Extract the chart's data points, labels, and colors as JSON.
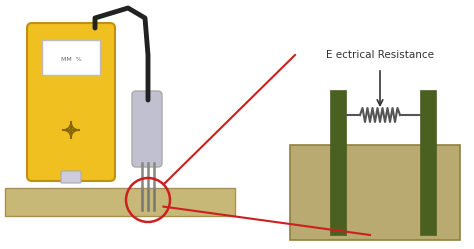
{
  "bg_color": "#ffffff",
  "meter_color": "#f0c020",
  "meter_border": "#c09010",
  "screen_color": "#e8e8f0",
  "probe_color": "#c0c0d0",
  "material_color_left": "#c8b878",
  "material_color_right": "#b8aa70",
  "dark_green": "#4a6020",
  "dark_green_light": "#6a8040",
  "pin_color": "#888880",
  "cable_color": "#222222",
  "red_color": "#cc2020",
  "text_color": "#333333",
  "resistor_text": "E ectrical Resistance",
  "text_fontsize": 7.5,
  "wire_color": "#555555",
  "connector_color": "#ccccdd"
}
